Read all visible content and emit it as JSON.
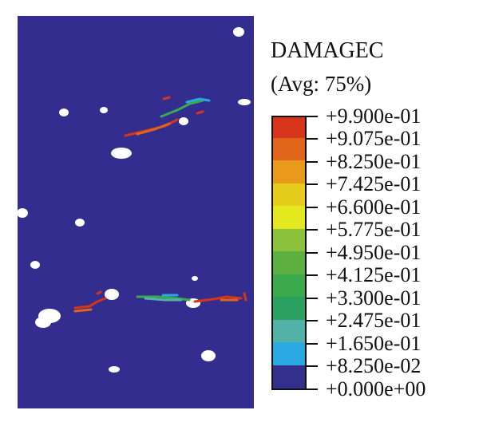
{
  "legend": {
    "variable": "DAMAGEC",
    "averaging": "(Avg: 75%)",
    "levels": [
      {
        "label": "+9.900e-01",
        "color": "#d8341c"
      },
      {
        "label": "+9.075e-01",
        "color": "#e0641a"
      },
      {
        "label": "+8.250e-01",
        "color": "#e99a1a"
      },
      {
        "label": "+7.425e-01",
        "color": "#e6cc1c"
      },
      {
        "label": "+6.600e-01",
        "color": "#e3e91e"
      },
      {
        "label": "+5.775e-01",
        "color": "#8cc23b"
      },
      {
        "label": "+4.950e-01",
        "color": "#5db040"
      },
      {
        "label": "+4.125e-01",
        "color": "#3aaa4c"
      },
      {
        "label": "+3.300e-01",
        "color": "#2aa160"
      },
      {
        "label": "+2.475e-01",
        "color": "#52b2a8"
      },
      {
        "label": "+1.650e-01",
        "color": "#2aa8e2"
      },
      {
        "label": "+8.250e-02",
        "color": "#3d4c9e"
      },
      {
        "label": "+0.000e+00",
        "color": "#322f8d"
      }
    ]
  },
  "colors": {
    "specimen": "#322d8e",
    "void": "#ffffff"
  }
}
